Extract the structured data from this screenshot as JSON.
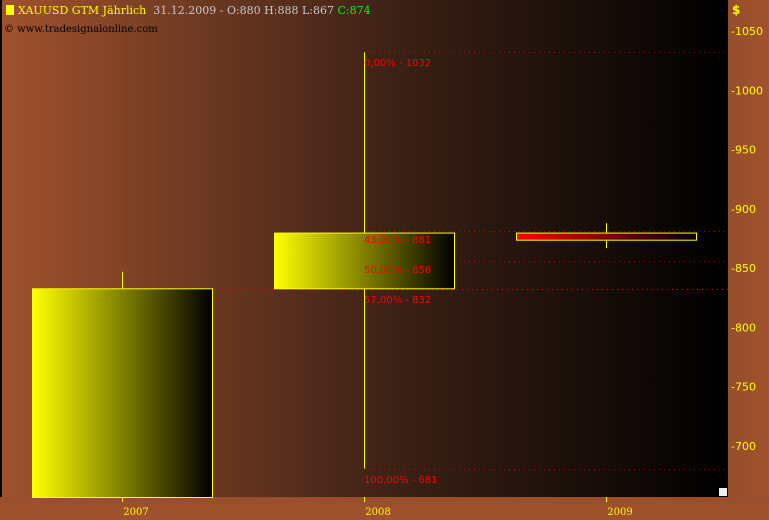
{
  "header": {
    "symbol": "XAUUSD GTM Jährlich",
    "ohlc": "31.12.2009 - O:880 H:888 L:867",
    "close": "C:874",
    "source": "© www.tradesignalonline.com",
    "unit": "$"
  },
  "colors": {
    "bull": "#ffff00",
    "bear": "#ff0000",
    "fib": "#ff0000",
    "axis_text": "#ffff00"
  },
  "chart_data": {
    "type": "candlestick",
    "title": "XAUUSD GTM Jährlich",
    "categories": [
      "2007",
      "2008",
      "2009"
    ],
    "series": [
      {
        "x": "2007",
        "open": 636,
        "high": 847,
        "low": 636,
        "close": 833
      },
      {
        "x": "2008",
        "open": 833,
        "high": 1032,
        "low": 681,
        "close": 880
      },
      {
        "x": "2009",
        "open": 880,
        "high": 888,
        "low": 867,
        "close": 874
      }
    ],
    "fib_levels": [
      {
        "label": "0,00% - 1032",
        "value": 1032
      },
      {
        "label": "43,00% - 881",
        "value": 881
      },
      {
        "label": "50,00% - 856",
        "value": 856
      },
      {
        "label": "57,00% - 832",
        "value": 832
      },
      {
        "label": "100,00% - 681",
        "value": 681
      }
    ],
    "y_ticks": [
      700,
      750,
      800,
      850,
      900,
      950,
      1000,
      1050
    ],
    "ylim": [
      655,
      1076
    ],
    "ylabel": "$",
    "grid": false
  }
}
